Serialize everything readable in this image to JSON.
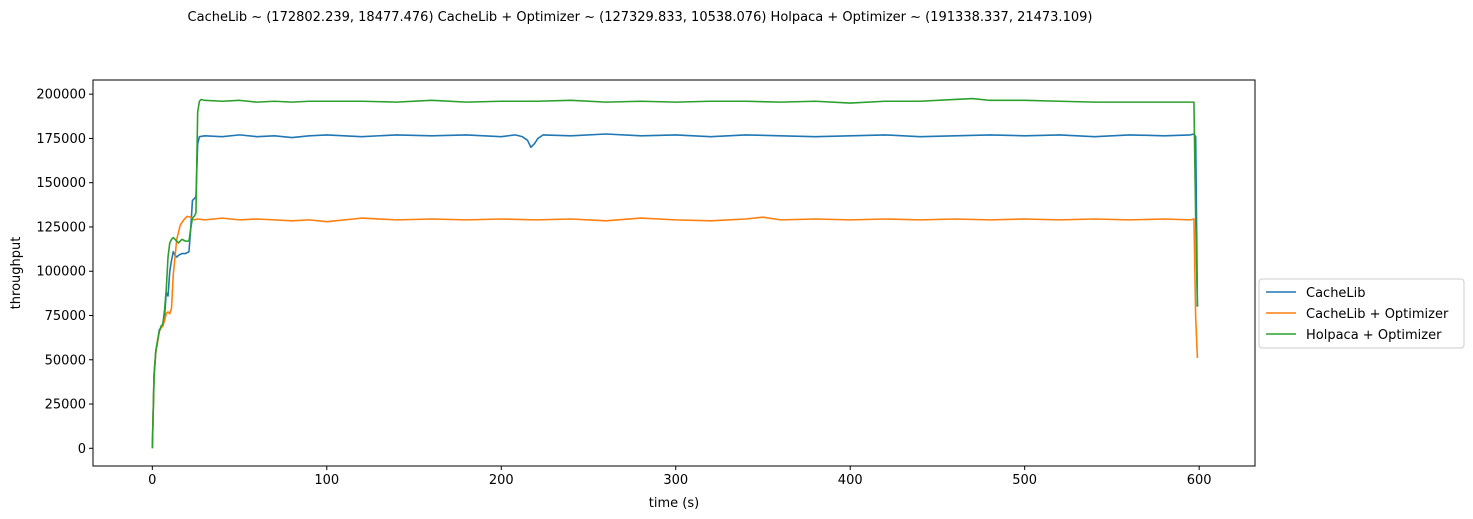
{
  "chart_data": {
    "type": "line",
    "title": "CacheLib ~ (172802.239, 18477.476)   CacheLib + Optimizer ~ (127329.833, 10538.076)   Holpaca + Optimizer ~ (191338.337, 21473.109)",
    "xlabel": "time (s)",
    "ylabel": "throughput",
    "xlim": [
      -34,
      632
    ],
    "ylim": [
      -10000,
      208000
    ],
    "x_ticks": [
      0,
      100,
      200,
      300,
      400,
      500,
      600
    ],
    "y_ticks": [
      0,
      25000,
      50000,
      75000,
      100000,
      125000,
      150000,
      175000,
      200000
    ],
    "grid": false,
    "legend_position": "center-right-outside",
    "series": [
      {
        "name": "CacheLib",
        "color": "#1f77b4",
        "points": [
          [
            0,
            0
          ],
          [
            1,
            42000
          ],
          [
            2,
            55000
          ],
          [
            3,
            60000
          ],
          [
            4,
            67000
          ],
          [
            5,
            68000
          ],
          [
            6,
            70000
          ],
          [
            7,
            74000
          ],
          [
            8,
            88000
          ],
          [
            9,
            86000
          ],
          [
            10,
            100000
          ],
          [
            11,
            106000
          ],
          [
            12,
            111000
          ],
          [
            13,
            109000
          ],
          [
            14,
            108000
          ],
          [
            15,
            109000
          ],
          [
            17,
            110000
          ],
          [
            19,
            110000
          ],
          [
            21,
            111000
          ],
          [
            22,
            124000
          ],
          [
            23,
            140000
          ],
          [
            24,
            141000
          ],
          [
            25,
            142000
          ],
          [
            26,
            172000
          ],
          [
            27,
            176000
          ],
          [
            30,
            176500
          ],
          [
            40,
            176000
          ],
          [
            50,
            177000
          ],
          [
            60,
            176000
          ],
          [
            70,
            176500
          ],
          [
            80,
            175500
          ],
          [
            90,
            176500
          ],
          [
            100,
            177000
          ],
          [
            120,
            176000
          ],
          [
            140,
            177000
          ],
          [
            160,
            176500
          ],
          [
            180,
            177000
          ],
          [
            200,
            176000
          ],
          [
            208,
            177000
          ],
          [
            212,
            176000
          ],
          [
            215,
            174000
          ],
          [
            217,
            170000
          ],
          [
            219,
            172000
          ],
          [
            221,
            175000
          ],
          [
            224,
            177000
          ],
          [
            240,
            176500
          ],
          [
            260,
            177500
          ],
          [
            280,
            176500
          ],
          [
            300,
            177000
          ],
          [
            320,
            176000
          ],
          [
            340,
            177000
          ],
          [
            360,
            176500
          ],
          [
            380,
            176000
          ],
          [
            400,
            176500
          ],
          [
            420,
            177000
          ],
          [
            440,
            176000
          ],
          [
            460,
            176500
          ],
          [
            480,
            177000
          ],
          [
            500,
            176500
          ],
          [
            520,
            177000
          ],
          [
            540,
            176000
          ],
          [
            560,
            177000
          ],
          [
            580,
            176500
          ],
          [
            595,
            177000
          ],
          [
            597,
            177500
          ],
          [
            598,
            176000
          ],
          [
            599,
            80000
          ]
        ]
      },
      {
        "name": "CacheLib + Optimizer",
        "color": "#ff7f0e",
        "points": [
          [
            0,
            0
          ],
          [
            1,
            42000
          ],
          [
            2,
            54000
          ],
          [
            3,
            60000
          ],
          [
            4,
            66000
          ],
          [
            5,
            68000
          ],
          [
            6,
            69000
          ],
          [
            7,
            72000
          ],
          [
            8,
            76000
          ],
          [
            9,
            77000
          ],
          [
            10,
            76000
          ],
          [
            11,
            79000
          ],
          [
            12,
            98000
          ],
          [
            13,
            108000
          ],
          [
            14,
            118000
          ],
          [
            15,
            122000
          ],
          [
            16,
            126000
          ],
          [
            18,
            129000
          ],
          [
            20,
            131000
          ],
          [
            22,
            130500
          ],
          [
            24,
            129000
          ],
          [
            26,
            129500
          ],
          [
            30,
            129000
          ],
          [
            40,
            130000
          ],
          [
            50,
            129000
          ],
          [
            60,
            129500
          ],
          [
            70,
            129000
          ],
          [
            80,
            128500
          ],
          [
            90,
            129000
          ],
          [
            100,
            128000
          ],
          [
            120,
            130000
          ],
          [
            140,
            129000
          ],
          [
            160,
            129500
          ],
          [
            180,
            129000
          ],
          [
            200,
            129500
          ],
          [
            220,
            129000
          ],
          [
            240,
            129500
          ],
          [
            260,
            128500
          ],
          [
            280,
            130000
          ],
          [
            300,
            129000
          ],
          [
            320,
            128500
          ],
          [
            340,
            129500
          ],
          [
            350,
            130500
          ],
          [
            360,
            129000
          ],
          [
            380,
            129500
          ],
          [
            400,
            129000
          ],
          [
            420,
            129500
          ],
          [
            440,
            129000
          ],
          [
            460,
            129500
          ],
          [
            480,
            129000
          ],
          [
            500,
            129500
          ],
          [
            520,
            129000
          ],
          [
            540,
            129500
          ],
          [
            560,
            129000
          ],
          [
            580,
            129500
          ],
          [
            595,
            129000
          ],
          [
            597,
            129500
          ],
          [
            598,
            74000
          ],
          [
            599,
            51000
          ]
        ]
      },
      {
        "name": "Holpaca + Optimizer",
        "color": "#2ca02c",
        "points": [
          [
            0,
            0
          ],
          [
            1,
            40000
          ],
          [
            2,
            55000
          ],
          [
            3,
            61000
          ],
          [
            4,
            66000
          ],
          [
            5,
            69000
          ],
          [
            6,
            70000
          ],
          [
            7,
            78000
          ],
          [
            8,
            90000
          ],
          [
            9,
            108000
          ],
          [
            10,
            116000
          ],
          [
            11,
            118000
          ],
          [
            12,
            119000
          ],
          [
            13,
            118000
          ],
          [
            14,
            117000
          ],
          [
            15,
            116000
          ],
          [
            17,
            118000
          ],
          [
            19,
            117000
          ],
          [
            21,
            117000
          ],
          [
            22,
            124000
          ],
          [
            23,
            130000
          ],
          [
            24,
            131000
          ],
          [
            25,
            133000
          ],
          [
            26,
            190000
          ],
          [
            27,
            196000
          ],
          [
            28,
            197000
          ],
          [
            30,
            196500
          ],
          [
            40,
            196000
          ],
          [
            50,
            196500
          ],
          [
            60,
            195500
          ],
          [
            70,
            196000
          ],
          [
            80,
            195500
          ],
          [
            90,
            196000
          ],
          [
            100,
            196000
          ],
          [
            120,
            196000
          ],
          [
            140,
            195500
          ],
          [
            160,
            196500
          ],
          [
            180,
            195500
          ],
          [
            200,
            196000
          ],
          [
            220,
            196000
          ],
          [
            240,
            196500
          ],
          [
            260,
            195500
          ],
          [
            280,
            196000
          ],
          [
            300,
            195500
          ],
          [
            320,
            196000
          ],
          [
            340,
            196000
          ],
          [
            360,
            195500
          ],
          [
            380,
            196000
          ],
          [
            400,
            195000
          ],
          [
            420,
            196000
          ],
          [
            440,
            196000
          ],
          [
            460,
            197000
          ],
          [
            470,
            197500
          ],
          [
            480,
            196500
          ],
          [
            500,
            196500
          ],
          [
            520,
            196000
          ],
          [
            540,
            195500
          ],
          [
            560,
            195500
          ],
          [
            580,
            195500
          ],
          [
            590,
            195500
          ],
          [
            597,
            195500
          ],
          [
            598,
            130000
          ],
          [
            599,
            80000
          ]
        ]
      }
    ]
  }
}
